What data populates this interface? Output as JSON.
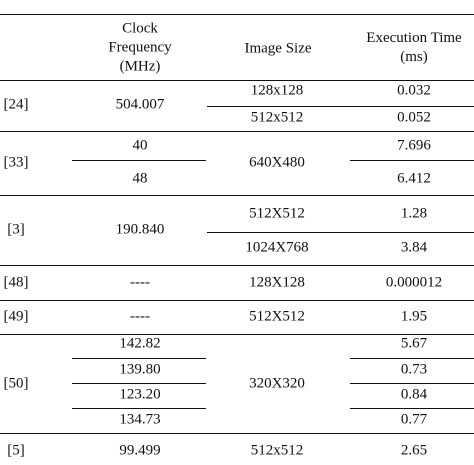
{
  "table": {
    "headers": {
      "clock_line1": "Clock",
      "clock_line2": "Frequency",
      "clock_line3": "(MHz)",
      "image_size": "Image Size",
      "exec_line1": "Execution Time",
      "exec_line2": "(ms)"
    },
    "groups": [
      {
        "ref": "[24]",
        "clock": [
          "504.007"
        ],
        "image": [
          "128x128",
          "512x512"
        ],
        "time": [
          "0.032",
          "0.052"
        ]
      },
      {
        "ref": "[33]",
        "clock": [
          "40",
          "48"
        ],
        "image": [
          "640X480"
        ],
        "time": [
          "7.696",
          "6.412"
        ]
      },
      {
        "ref": "[3]",
        "clock": [
          "190.840"
        ],
        "image": [
          "512X512",
          "1024X768"
        ],
        "time": [
          "1.28",
          "3.84"
        ]
      },
      {
        "ref": "[48]",
        "clock": [
          "----"
        ],
        "image": [
          "128X128"
        ],
        "time": [
          "0.000012"
        ]
      },
      {
        "ref": "[49]",
        "clock": [
          "----"
        ],
        "image": [
          "512X512"
        ],
        "time": [
          "1.95"
        ]
      },
      {
        "ref": "[50]",
        "clock": [
          "142.82",
          "139.80",
          "123.20",
          "134.73"
        ],
        "image": [
          "320X320"
        ],
        "time": [
          "5.67",
          "0.73",
          "0.84",
          "0.77"
        ]
      },
      {
        "ref": "[5]",
        "clock": [
          "99.499"
        ],
        "image": [
          "512x512"
        ],
        "time": [
          "2.65"
        ]
      }
    ]
  }
}
